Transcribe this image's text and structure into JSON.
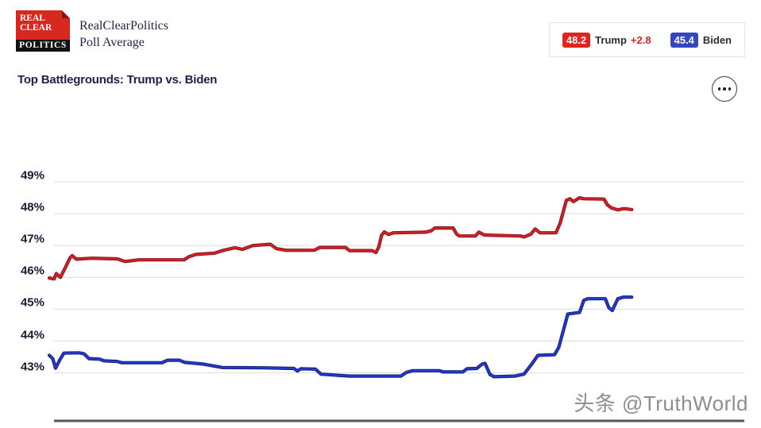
{
  "header": {
    "logo": {
      "line1": "REAL",
      "line2": "CLEAR",
      "line3": "POLITICS"
    },
    "brand_line1": "RealClearPolitics",
    "brand_line2": "Poll Average",
    "legend": {
      "trump": {
        "value": "48.2",
        "label": "Trump",
        "spread": "+2.8"
      },
      "biden": {
        "value": "45.4",
        "label": "Biden"
      }
    }
  },
  "title": "Top Battlegrounds: Trump vs. Biden",
  "watermark": "头条 @TruthWorld",
  "colors": {
    "trump_red": "#cf2128",
    "trump_red_edge": "#8c1115",
    "biden_blue": "#2438c8",
    "biden_blue_edge": "#13217d",
    "badge_red": "#e2241f",
    "badge_blue": "#3347c2",
    "accent_navy": "#221d49",
    "gridline_gray": "#dcdcdc",
    "axis_gray": "#54575b"
  },
  "chart_data": {
    "type": "line",
    "title": "Top Battlegrounds: Trump vs. Biden",
    "xlabel": "",
    "ylabel": "",
    "grid": true,
    "legend_position": "top-right",
    "y_ticks": [
      "49%",
      "48%",
      "47%",
      "46%",
      "45%",
      "44%",
      "43%"
    ],
    "tick_values": [
      49,
      48,
      47,
      46,
      45,
      44,
      43
    ],
    "ylim": [
      42.7,
      49.4
    ],
    "x_axis_note": "no x tick labels visible; x given as fraction of plot width, lines end at 0.838",
    "series": [
      {
        "name": "Trump",
        "color": "#cf2128",
        "edge_color": "#8c1115",
        "final_value": 48.2,
        "spread": "+2.8",
        "points": [
          [
            0.0,
            45.98
          ],
          [
            0.007,
            45.95
          ],
          [
            0.01,
            46.12
          ],
          [
            0.016,
            46.0
          ],
          [
            0.023,
            46.3
          ],
          [
            0.03,
            46.62
          ],
          [
            0.033,
            46.68
          ],
          [
            0.039,
            46.57
          ],
          [
            0.061,
            46.6
          ],
          [
            0.098,
            46.58
          ],
          [
            0.109,
            46.5
          ],
          [
            0.129,
            46.55
          ],
          [
            0.194,
            46.55
          ],
          [
            0.201,
            46.65
          ],
          [
            0.211,
            46.72
          ],
          [
            0.238,
            46.76
          ],
          [
            0.249,
            46.84
          ],
          [
            0.267,
            46.93
          ],
          [
            0.278,
            46.88
          ],
          [
            0.293,
            47.0
          ],
          [
            0.318,
            47.04
          ],
          [
            0.327,
            46.9
          ],
          [
            0.341,
            46.85
          ],
          [
            0.381,
            46.85
          ],
          [
            0.389,
            46.94
          ],
          [
            0.426,
            46.94
          ],
          [
            0.432,
            46.84
          ],
          [
            0.464,
            46.84
          ],
          [
            0.47,
            46.78
          ],
          [
            0.474,
            46.95
          ],
          [
            0.478,
            47.32
          ],
          [
            0.482,
            47.43
          ],
          [
            0.488,
            47.35
          ],
          [
            0.495,
            47.4
          ],
          [
            0.541,
            47.42
          ],
          [
            0.549,
            47.46
          ],
          [
            0.555,
            47.55
          ],
          [
            0.581,
            47.55
          ],
          [
            0.586,
            47.36
          ],
          [
            0.59,
            47.3
          ],
          [
            0.613,
            47.3
          ],
          [
            0.618,
            47.42
          ],
          [
            0.626,
            47.33
          ],
          [
            0.678,
            47.3
          ],
          [
            0.683,
            47.27
          ],
          [
            0.693,
            47.36
          ],
          [
            0.699,
            47.52
          ],
          [
            0.706,
            47.4
          ],
          [
            0.729,
            47.4
          ],
          [
            0.735,
            47.7
          ],
          [
            0.744,
            48.42
          ],
          [
            0.749,
            48.47
          ],
          [
            0.754,
            48.38
          ],
          [
            0.763,
            48.5
          ],
          [
            0.769,
            48.47
          ],
          [
            0.798,
            48.46
          ],
          [
            0.803,
            48.28
          ],
          [
            0.809,
            48.18
          ],
          [
            0.818,
            48.12
          ],
          [
            0.827,
            48.16
          ],
          [
            0.838,
            48.13
          ]
        ]
      },
      {
        "name": "Biden",
        "color": "#2438c8",
        "edge_color": "#13217d",
        "final_value": 45.4,
        "points": [
          [
            0.0,
            43.55
          ],
          [
            0.005,
            43.45
          ],
          [
            0.009,
            43.15
          ],
          [
            0.015,
            43.4
          ],
          [
            0.021,
            43.62
          ],
          [
            0.043,
            43.63
          ],
          [
            0.05,
            43.6
          ],
          [
            0.057,
            43.45
          ],
          [
            0.073,
            43.43
          ],
          [
            0.079,
            43.38
          ],
          [
            0.098,
            43.36
          ],
          [
            0.104,
            43.32
          ],
          [
            0.162,
            43.32
          ],
          [
            0.17,
            43.4
          ],
          [
            0.187,
            43.4
          ],
          [
            0.195,
            43.33
          ],
          [
            0.221,
            43.28
          ],
          [
            0.249,
            43.17
          ],
          [
            0.306,
            43.16
          ],
          [
            0.352,
            43.14
          ],
          [
            0.357,
            43.06
          ],
          [
            0.362,
            43.13
          ],
          [
            0.383,
            43.12
          ],
          [
            0.391,
            42.96
          ],
          [
            0.432,
            42.9
          ],
          [
            0.506,
            42.9
          ],
          [
            0.514,
            43.02
          ],
          [
            0.523,
            43.07
          ],
          [
            0.561,
            43.07
          ],
          [
            0.567,
            43.03
          ],
          [
            0.595,
            43.03
          ],
          [
            0.601,
            43.13
          ],
          [
            0.615,
            43.14
          ],
          [
            0.623,
            43.28
          ],
          [
            0.627,
            43.3
          ],
          [
            0.634,
            42.95
          ],
          [
            0.64,
            42.88
          ],
          [
            0.67,
            42.9
          ],
          [
            0.683,
            42.96
          ],
          [
            0.695,
            43.3
          ],
          [
            0.703,
            43.55
          ],
          [
            0.727,
            43.57
          ],
          [
            0.733,
            43.8
          ],
          [
            0.746,
            44.85
          ],
          [
            0.763,
            44.9
          ],
          [
            0.769,
            45.28
          ],
          [
            0.775,
            45.33
          ],
          [
            0.8,
            45.33
          ],
          [
            0.805,
            45.05
          ],
          [
            0.81,
            44.96
          ],
          [
            0.818,
            45.33
          ],
          [
            0.826,
            45.38
          ],
          [
            0.838,
            45.38
          ]
        ]
      }
    ]
  }
}
